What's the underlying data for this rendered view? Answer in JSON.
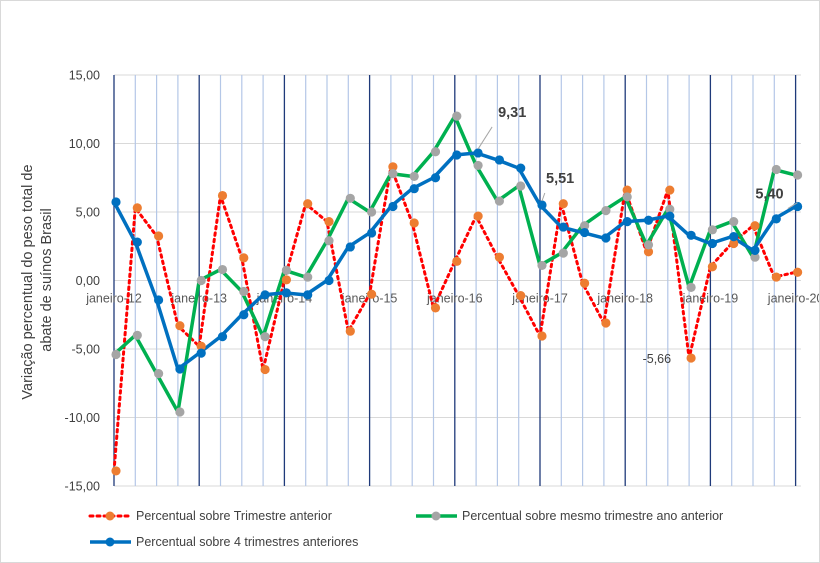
{
  "chart_data": {
    "type": "line",
    "ylabel": [
      "Variação percentual do peso total de",
      "abate de suínos Brasil"
    ],
    "ylim": [
      -15,
      15
    ],
    "yticks": [
      "15,00",
      "10,00",
      "5,00",
      "0,00",
      "-5,00",
      "-10,00",
      "-15,00"
    ],
    "ytick_values": [
      15,
      10,
      5,
      0,
      -5,
      -10,
      -15
    ],
    "xtick_labels": [
      "janeiro-12",
      "janeiro-13",
      "janeiro-14",
      "janeiro-15",
      "janeiro-16",
      "janeiro-17",
      "janeiro-18",
      "janeiro-19",
      "janeiro-20"
    ],
    "x_frequency": "quarterly",
    "grid": {
      "horizontal": true,
      "vertical_quarterly": true
    },
    "legend_position": "bottom",
    "series": [
      {
        "name": "Percentual sobre Trimestre anterior",
        "style": "dotted",
        "color": "#ff0000",
        "marker_color": "#ed7d31",
        "values": [
          -13.9,
          5.3,
          3.25,
          -3.3,
          -4.8,
          6.2,
          1.65,
          -6.5,
          0.05,
          5.6,
          4.3,
          -3.7,
          -1.0,
          8.3,
          4.2,
          -2.0,
          1.4,
          4.7,
          1.7,
          -1.1,
          -4.05,
          5.6,
          -0.2,
          -3.1,
          6.6,
          2.1,
          6.6,
          -5.66,
          1.0,
          2.7,
          4.0,
          0.25,
          0.6
        ]
      },
      {
        "name": "Percentual sobre mesmo trimestre ano anterior",
        "style": "solid",
        "color": "#00b050",
        "marker_color": "#a5a5a5",
        "values": [
          -5.4,
          -4.0,
          -6.8,
          -9.6,
          0.0,
          0.8,
          -0.8,
          -4.1,
          0.75,
          0.25,
          2.9,
          6.0,
          5.0,
          7.8,
          7.6,
          9.4,
          12.0,
          8.4,
          5.8,
          6.9,
          1.1,
          2.0,
          4.0,
          5.1,
          6.1,
          2.6,
          5.2,
          -0.5,
          3.7,
          4.3,
          1.7,
          8.1,
          7.7
        ]
      },
      {
        "name": "Percentual sobre 4 trimestres anteriores",
        "style": "solid",
        "color": "#0070c0",
        "marker_color": "#0070c0",
        "values": [
          5.73,
          2.8,
          -1.42,
          -6.46,
          -5.3,
          -4.1,
          -2.5,
          -1.05,
          -0.9,
          -1.05,
          0.0,
          2.45,
          3.47,
          5.4,
          6.7,
          7.5,
          9.16,
          9.31,
          8.8,
          8.2,
          5.51,
          3.9,
          3.5,
          3.1,
          4.3,
          4.4,
          4.7,
          3.3,
          2.7,
          3.2,
          2.2,
          4.5,
          5.4
        ]
      }
    ],
    "annotations": [
      {
        "series": 2,
        "index": 17,
        "text": "9,31"
      },
      {
        "series": 2,
        "index": 20,
        "text": "5,51"
      },
      {
        "series": 0,
        "index": 27,
        "text": "-5,66"
      },
      {
        "series": 2,
        "index": 32,
        "text": "5,40"
      }
    ],
    "colors": {
      "year_line": "#1f3a7a",
      "quarter_line": "#b4c7e7",
      "hgrid": "#d9d9d9"
    }
  }
}
